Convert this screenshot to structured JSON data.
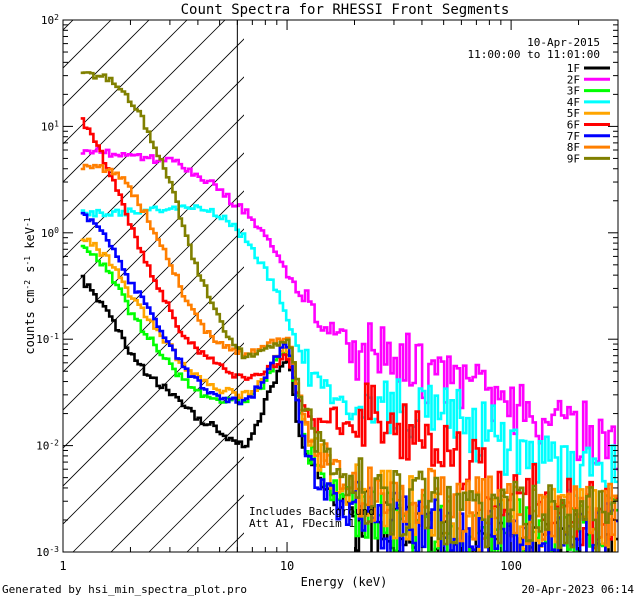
{
  "chart_data": {
    "type": "line",
    "title": "Count Spectra for RHESSI Front Segments",
    "xlabel": "Energy (keV)",
    "ylabel_parts": {
      "base": "counts cm",
      "sup1": "-2",
      "mid1": " s",
      "sup2": "-1",
      "mid2": " keV",
      "sup3": "-1"
    },
    "xscale": "log",
    "yscale": "log",
    "xlim": [
      1,
      300
    ],
    "ylim": [
      0.001,
      100
    ],
    "x_ticks": [
      {
        "v": 1,
        "label": "1"
      },
      {
        "v": 10,
        "label": "10"
      },
      {
        "v": 100,
        "label": "100"
      }
    ],
    "y_ticks": [
      {
        "v": 0.001,
        "base": "10",
        "exp": "-3"
      },
      {
        "v": 0.01,
        "base": "10",
        "exp": "-2"
      },
      {
        "v": 0.1,
        "base": "10",
        "exp": "-1"
      },
      {
        "v": 1,
        "base": "10",
        "exp": "0"
      },
      {
        "v": 10,
        "base": "10",
        "exp": "1"
      },
      {
        "v": 100,
        "base": "10",
        "exp": "2"
      }
    ],
    "attenuator_edge_keV": 6,
    "date_label": "10-Apr-2015",
    "time_label": "11:00:00 to 11:01:00",
    "annotation_lines": [
      "Includes Background",
      "Att A1, FDecim 1"
    ],
    "x": [
      1.2,
      1.4,
      1.6,
      1.8,
      2.0,
      2.3,
      2.6,
      3.0,
      3.3,
      3.6,
      4.0,
      4.5,
      5.0,
      5.5,
      6.0,
      6.5,
      7.0,
      8.0,
      9.0,
      10.0,
      10.5,
      11.0,
      12.0,
      14.0,
      16.0,
      18.0,
      20.0,
      25.0,
      30.0,
      40.0,
      50.0,
      60.0,
      80.0,
      100.0,
      150.0,
      200.0,
      250.0,
      300.0
    ],
    "series": [
      {
        "name": "1F",
        "color": "#000000",
        "values": [
          0.38,
          0.25,
          0.17,
          0.11,
          0.075,
          0.052,
          0.04,
          0.032,
          0.026,
          0.022,
          0.018,
          0.016,
          0.014,
          0.012,
          0.011,
          0.01,
          0.012,
          0.025,
          0.045,
          0.065,
          0.05,
          0.02,
          0.008,
          0.004,
          0.003,
          0.0025,
          0.002,
          0.0017,
          0.0015,
          0.0013,
          0.0012,
          0.0011,
          0.0012,
          0.0012,
          0.0011,
          0.0011,
          0.0012,
          0.0012
        ]
      },
      {
        "name": "2F",
        "color": "#ff00ff",
        "values": [
          6.0,
          5.8,
          5.6,
          5.4,
          5.3,
          5.1,
          4.9,
          4.7,
          4.4,
          4.0,
          3.5,
          3.0,
          2.5,
          2.1,
          1.8,
          1.6,
          1.35,
          0.95,
          0.62,
          0.4,
          0.35,
          0.3,
          0.22,
          0.14,
          0.1,
          0.09,
          0.08,
          0.07,
          0.065,
          0.055,
          0.045,
          0.04,
          0.035,
          0.025,
          0.017,
          0.013,
          0.011,
          0.01
        ]
      },
      {
        "name": "3F",
        "color": "#00ff00",
        "values": [
          0.8,
          0.6,
          0.42,
          0.28,
          0.18,
          0.12,
          0.085,
          0.06,
          0.046,
          0.038,
          0.032,
          0.028,
          0.026,
          0.026,
          0.026,
          0.026,
          0.028,
          0.04,
          0.065,
          0.08,
          0.06,
          0.03,
          0.012,
          0.006,
          0.004,
          0.0035,
          0.003,
          0.0025,
          0.002,
          0.0018,
          0.0016,
          0.0015,
          0.0016,
          0.0017,
          0.0017,
          0.0016,
          0.0017,
          0.0016
        ]
      },
      {
        "name": "4F",
        "color": "#00ffff",
        "values": [
          1.5,
          1.55,
          1.55,
          1.55,
          1.6,
          1.6,
          1.62,
          1.65,
          1.68,
          1.7,
          1.7,
          1.6,
          1.45,
          1.25,
          1.05,
          0.9,
          0.7,
          0.45,
          0.28,
          0.16,
          0.12,
          0.09,
          0.06,
          0.035,
          0.028,
          0.025,
          0.024,
          0.023,
          0.022,
          0.02,
          0.018,
          0.016,
          0.013,
          0.01,
          0.008,
          0.0065,
          0.0055,
          0.005
        ]
      },
      {
        "name": "5F",
        "color": "#ffa500",
        "values": [
          0.95,
          0.75,
          0.55,
          0.38,
          0.26,
          0.18,
          0.12,
          0.085,
          0.065,
          0.052,
          0.044,
          0.038,
          0.034,
          0.032,
          0.03,
          0.03,
          0.032,
          0.045,
          0.07,
          0.085,
          0.065,
          0.035,
          0.015,
          0.008,
          0.005,
          0.004,
          0.0035,
          0.003,
          0.0027,
          0.0024,
          0.0022,
          0.002,
          0.0021,
          0.0021,
          0.002,
          0.0019,
          0.0019,
          0.0018
        ]
      },
      {
        "name": "6F",
        "color": "#ff0000",
        "values": [
          12.0,
          7.0,
          4.0,
          2.2,
          1.2,
          0.6,
          0.32,
          0.19,
          0.13,
          0.1,
          0.08,
          0.065,
          0.055,
          0.05,
          0.046,
          0.044,
          0.045,
          0.05,
          0.06,
          0.07,
          0.055,
          0.035,
          0.022,
          0.018,
          0.017,
          0.018,
          0.019,
          0.018,
          0.016,
          0.012,
          0.009,
          0.007,
          0.005,
          0.004,
          0.003,
          0.0025,
          0.002,
          0.002
        ]
      },
      {
        "name": "7F",
        "color": "#0000ff",
        "values": [
          1.5,
          1.2,
          0.85,
          0.55,
          0.35,
          0.22,
          0.14,
          0.09,
          0.065,
          0.05,
          0.04,
          0.033,
          0.029,
          0.027,
          0.026,
          0.027,
          0.03,
          0.045,
          0.07,
          0.09,
          0.07,
          0.03,
          0.01,
          0.004,
          0.003,
          0.0025,
          0.0022,
          0.002,
          0.0018,
          0.0016,
          0.0015,
          0.0014,
          0.0014,
          0.0014,
          0.0014,
          0.0013,
          0.0014,
          0.0014
        ]
      },
      {
        "name": "8F",
        "color": "#ff7f00",
        "values": [
          4.2,
          4.2,
          4.0,
          3.4,
          2.5,
          1.6,
          0.95,
          0.55,
          0.34,
          0.22,
          0.15,
          0.11,
          0.09,
          0.08,
          0.075,
          0.072,
          0.075,
          0.085,
          0.1,
          0.1,
          0.075,
          0.04,
          0.018,
          0.009,
          0.006,
          0.005,
          0.0045,
          0.004,
          0.0035,
          0.003,
          0.0027,
          0.0025,
          0.0025,
          0.0025,
          0.0023,
          0.0022,
          0.0022,
          0.002
        ]
      },
      {
        "name": "9F",
        "color": "#808000",
        "values": [
          30.0,
          30.0,
          28.0,
          24.0,
          18.0,
          11.0,
          6.0,
          3.0,
          1.6,
          0.85,
          0.45,
          0.25,
          0.15,
          0.1,
          0.08,
          0.07,
          0.07,
          0.08,
          0.09,
          0.1,
          0.08,
          0.045,
          0.02,
          0.01,
          0.0065,
          0.005,
          0.0042,
          0.0035,
          0.003,
          0.0027,
          0.0024,
          0.0022,
          0.0022,
          0.0022,
          0.0021,
          0.002,
          0.002,
          0.002
        ]
      }
    ]
  },
  "footer": {
    "left": "Generated by hsi_min_spectra_plot.pro",
    "right": "20-Apr-2023 06:14"
  }
}
